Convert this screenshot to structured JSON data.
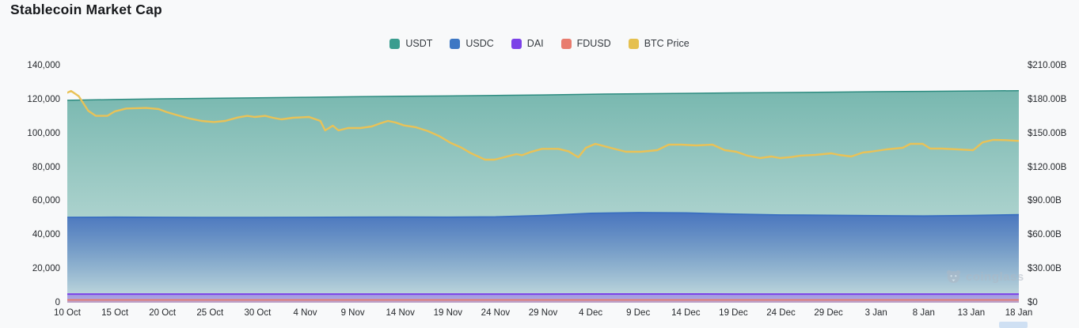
{
  "title": "Stablecoin Market Cap",
  "watermark": {
    "text": "coinglass",
    "icon": "coinglass-bear-logo"
  },
  "legend": [
    {
      "label": "USDT",
      "color": "#3a9d8f"
    },
    {
      "label": "USDC",
      "color": "#3d77c4"
    },
    {
      "label": "DAI",
      "color": "#7c42e8"
    },
    {
      "label": "FDUSD",
      "color": "#e87c6e"
    },
    {
      "label": "BTC Price",
      "color": "#e5c04f"
    }
  ],
  "chart_data": {
    "type": "area",
    "title": "Stablecoin Market Cap",
    "grid": false,
    "legend_position": "top-center",
    "x_dates": [
      "10 Oct",
      "15 Oct",
      "20 Oct",
      "25 Oct",
      "30 Oct",
      "4 Nov",
      "9 Nov",
      "14 Nov",
      "19 Nov",
      "24 Nov",
      "29 Nov",
      "4 Dec",
      "9 Dec",
      "14 Dec",
      "19 Dec",
      "24 Dec",
      "29 Dec",
      "3 Jan",
      "8 Jan",
      "13 Jan",
      "18 Jan"
    ],
    "left_axis": {
      "min": 0,
      "max": 140000,
      "step": 20000,
      "tick_labels_top_to_bottom": [
        "140,000",
        "120,000",
        "100,000",
        "80,000",
        "60,000",
        "40,000",
        "20,000",
        "0"
      ]
    },
    "right_axis": {
      "min": 0,
      "max": 210,
      "step": 30,
      "unit": "$B",
      "tick_labels_top_to_bottom": [
        "$210.00B",
        "$180.00B",
        "$150.00B",
        "$120.00B",
        "$90.00B",
        "$60.00B",
        "$30.00B",
        "$0"
      ]
    },
    "series": [
      {
        "name": "USDT",
        "axis": "left",
        "color": "#3a9d8f",
        "stroke": "#2d8c80",
        "stroke_width": 1.5,
        "fill_top": "rgba(54,150,137,0.66)",
        "fill_bottom": "rgba(54,150,137,0.22)",
        "values": [
          119500,
          120000,
          120400,
          120700,
          121000,
          121300,
          121600,
          121900,
          122100,
          122400,
          122700,
          123100,
          123400,
          123600,
          123900,
          124100,
          124300,
          124600,
          124800,
          125000,
          125200
        ]
      },
      {
        "name": "USDC",
        "axis": "left",
        "color": "#3d77c4",
        "stroke": "#3a6fc0",
        "stroke_width": 1.8,
        "fill_top": "rgba(66,110,190,0.92)",
        "fill_bottom": "rgba(66,110,190,0.03)",
        "values": [
          50400,
          50500,
          50400,
          50300,
          50300,
          50400,
          50500,
          50600,
          50500,
          50700,
          51500,
          52800,
          53200,
          53000,
          52300,
          51800,
          51600,
          51400,
          51200,
          51500,
          52000
        ]
      },
      {
        "name": "DAI",
        "axis": "left",
        "color": "#7c42e8",
        "stroke": "#7c42e8",
        "stroke_width": 2,
        "fill_top": "rgba(124,66,232,0.40)",
        "fill_bottom": "rgba(124,66,232,0.32)",
        "values": [
          5100,
          5100,
          5100,
          5100,
          5100,
          5100,
          5100,
          5100,
          5100,
          5100,
          5100,
          5150,
          5150,
          5150,
          5100,
          5100,
          5100,
          5100,
          5100,
          5100,
          5100
        ]
      },
      {
        "name": "FDUSD",
        "axis": "left",
        "color": "#e87c6e",
        "stroke": "#e87c6e",
        "stroke_width": 1.8,
        "fill_top": "rgba(232,124,110,0.30)",
        "fill_bottom": "rgba(232,124,110,0.22)",
        "values": [
          1700,
          1700,
          1700,
          1700,
          1700,
          1700,
          1700,
          1700,
          1700,
          1700,
          1700,
          1700,
          1700,
          1700,
          1700,
          1700,
          1700,
          1700,
          1700,
          1700,
          1700
        ]
      }
    ],
    "btc_price": {
      "name": "BTC Price",
      "axis": "right",
      "color": "#e9c257",
      "stroke_width": 2.4,
      "points_day_value": [
        [
          0,
          186
        ],
        [
          0.4,
          187.5
        ],
        [
          1.2,
          183
        ],
        [
          2.2,
          170
        ],
        [
          3,
          165.5
        ],
        [
          4.2,
          165.5
        ],
        [
          5,
          169.5
        ],
        [
          6.2,
          172
        ],
        [
          8.3,
          172.5
        ],
        [
          9.6,
          171.5
        ],
        [
          10.4,
          169
        ],
        [
          11.6,
          166
        ],
        [
          12.9,
          163
        ],
        [
          14.1,
          161
        ],
        [
          15.4,
          160
        ],
        [
          16.6,
          161
        ],
        [
          17.9,
          164
        ],
        [
          18.9,
          165.5
        ],
        [
          19.7,
          164.5
        ],
        [
          20.8,
          165.5
        ],
        [
          21.6,
          163.8
        ],
        [
          22.5,
          162.4
        ],
        [
          23.7,
          163.8
        ],
        [
          25.4,
          164.5
        ],
        [
          26.6,
          161
        ],
        [
          27.1,
          152.6
        ],
        [
          27.9,
          156.8
        ],
        [
          28.5,
          152.6
        ],
        [
          29.5,
          154.7
        ],
        [
          30.8,
          154.7
        ],
        [
          32,
          156.1
        ],
        [
          32.9,
          158.9
        ],
        [
          33.7,
          161
        ],
        [
          34.5,
          159.6
        ],
        [
          35.4,
          157
        ],
        [
          36.6,
          155.5
        ],
        [
          37.9,
          152
        ],
        [
          39.1,
          147.5
        ],
        [
          40.3,
          141.5
        ],
        [
          41.4,
          137.5
        ],
        [
          42.4,
          132.5
        ],
        [
          43.9,
          126.7
        ],
        [
          44.9,
          126.7
        ],
        [
          46,
          129
        ],
        [
          47.2,
          131.6
        ],
        [
          47.8,
          130.6
        ],
        [
          48.7,
          133.5
        ],
        [
          49.9,
          136.3
        ],
        [
          51.6,
          136.3
        ],
        [
          52.7,
          134
        ],
        [
          53.7,
          128.8
        ],
        [
          54.5,
          137.2
        ],
        [
          55.5,
          140.7
        ],
        [
          57.4,
          136.5
        ],
        [
          58.7,
          133.7
        ],
        [
          60.3,
          133.7
        ],
        [
          62,
          135.1
        ],
        [
          63.2,
          140
        ],
        [
          64.5,
          140
        ],
        [
          66.1,
          139.3
        ],
        [
          67.8,
          140
        ],
        [
          69.1,
          135.1
        ],
        [
          70.3,
          133.7
        ],
        [
          71.5,
          130.2
        ],
        [
          72.8,
          128.1
        ],
        [
          74,
          129.5
        ],
        [
          74.9,
          128.1
        ],
        [
          76.1,
          129
        ],
        [
          77,
          130.2
        ],
        [
          78.6,
          130.9
        ],
        [
          80.3,
          132.3
        ],
        [
          81.1,
          130.9
        ],
        [
          82.4,
          129.5
        ],
        [
          83.6,
          133
        ],
        [
          84.4,
          133.7
        ],
        [
          86.1,
          135.8
        ],
        [
          87.8,
          137.2
        ],
        [
          88.6,
          140.7
        ],
        [
          89.9,
          140.7
        ],
        [
          90.7,
          136.5
        ],
        [
          91.9,
          136.5
        ],
        [
          93.6,
          135.8
        ],
        [
          95.2,
          135.1
        ],
        [
          96.2,
          142
        ],
        [
          97.3,
          144.2
        ],
        [
          98.6,
          144
        ],
        [
          100,
          143.3
        ]
      ]
    }
  }
}
